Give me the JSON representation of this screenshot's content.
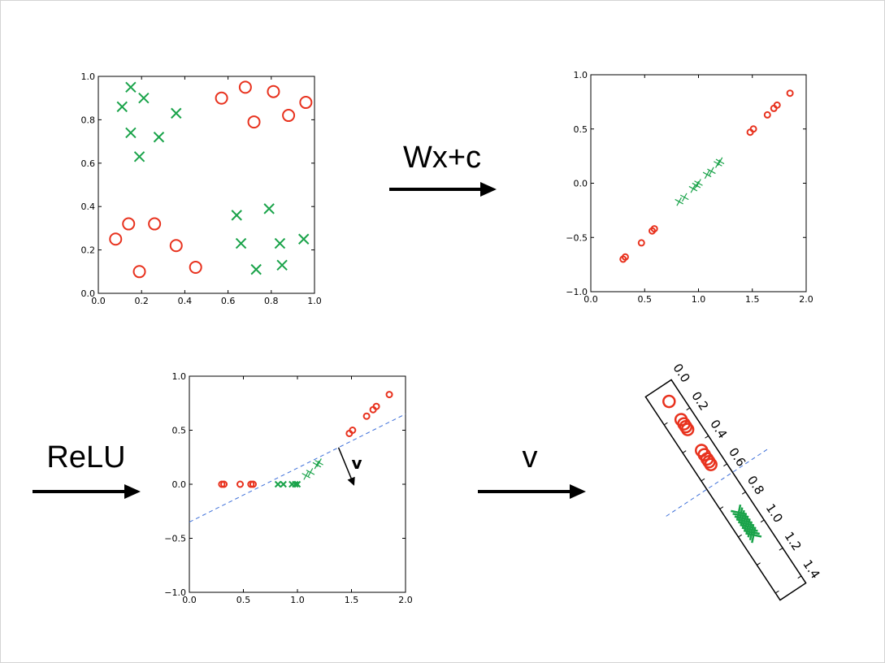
{
  "labels": {
    "wx_c": "Wx+c",
    "relu": "ReLU",
    "v_arrow": "v",
    "v_vector": "v"
  },
  "colors": {
    "circle": "#e8321e",
    "cross": "#1aa34a",
    "boundary": "#3d6fd9",
    "axis": "#000000"
  },
  "chart_data": [
    {
      "type": "scatter",
      "title": "",
      "xlim": [
        0,
        1
      ],
      "ylim": [
        0,
        1
      ],
      "xticks": [
        "0.0",
        "0.2",
        "0.4",
        "0.6",
        "0.8",
        "1.0"
      ],
      "yticks": [
        "0.0",
        "0.2",
        "0.4",
        "0.6",
        "0.8",
        "1.0"
      ],
      "series": [
        {
          "marker": "circle",
          "points": [
            [
              0.57,
              0.9
            ],
            [
              0.68,
              0.95
            ],
            [
              0.81,
              0.93
            ],
            [
              0.96,
              0.88
            ],
            [
              0.72,
              0.79
            ],
            [
              0.88,
              0.82
            ],
            [
              0.08,
              0.25
            ],
            [
              0.14,
              0.32
            ],
            [
              0.26,
              0.32
            ],
            [
              0.19,
              0.1
            ],
            [
              0.36,
              0.22
            ],
            [
              0.45,
              0.12
            ]
          ]
        },
        {
          "marker": "x",
          "points": [
            [
              0.15,
              0.95
            ],
            [
              0.21,
              0.9
            ],
            [
              0.11,
              0.86
            ],
            [
              0.36,
              0.83
            ],
            [
              0.15,
              0.74
            ],
            [
              0.28,
              0.72
            ],
            [
              0.19,
              0.63
            ],
            [
              0.64,
              0.36
            ],
            [
              0.79,
              0.39
            ],
            [
              0.66,
              0.23
            ],
            [
              0.84,
              0.23
            ],
            [
              0.95,
              0.25
            ],
            [
              0.73,
              0.11
            ],
            [
              0.85,
              0.13
            ]
          ]
        }
      ]
    },
    {
      "type": "scatter",
      "title": "",
      "xlim": [
        0,
        2
      ],
      "ylim": [
        -1,
        1
      ],
      "xticks": [
        "0.0",
        "0.5",
        "1.0",
        "1.5",
        "2.0"
      ],
      "yticks": [
        "−1.0",
        "−0.5",
        "0.0",
        "0.5",
        "1.0"
      ],
      "series": [
        {
          "marker": "circle",
          "points": [
            [
              0.3,
              -0.7
            ],
            [
              0.32,
              -0.68
            ],
            [
              0.47,
              -0.55
            ],
            [
              0.57,
              -0.44
            ],
            [
              0.59,
              -0.42
            ],
            [
              1.48,
              0.47
            ],
            [
              1.51,
              0.5
            ],
            [
              1.64,
              0.63
            ],
            [
              1.7,
              0.69
            ],
            [
              1.73,
              0.72
            ],
            [
              1.85,
              0.83
            ]
          ]
        },
        {
          "marker": "plus",
          "points": [
            [
              0.82,
              -0.17
            ],
            [
              0.87,
              -0.13
            ],
            [
              0.95,
              -0.05
            ],
            [
              0.98,
              -0.02
            ],
            [
              1.0,
              0.0
            ],
            [
              1.08,
              0.08
            ],
            [
              1.12,
              0.11
            ],
            [
              1.18,
              0.18
            ],
            [
              1.2,
              0.2
            ]
          ]
        }
      ]
    },
    {
      "type": "scatter",
      "title": "",
      "xlim": [
        0,
        2
      ],
      "ylim": [
        -1,
        1
      ],
      "xticks": [
        "0.0",
        "0.5",
        "1.0",
        "1.5",
        "2.0"
      ],
      "yticks": [
        "−1.0",
        "−0.5",
        "0.0",
        "0.5",
        "1.0"
      ],
      "boundary_line": [
        [
          0.0,
          -0.35
        ],
        [
          2.0,
          0.65
        ]
      ],
      "v_vector": [
        [
          1.38,
          0.34
        ],
        [
          1.52,
          0.0
        ]
      ],
      "series": [
        {
          "marker": "circle",
          "points": [
            [
              0.3,
              0.0
            ],
            [
              0.32,
              0.0
            ],
            [
              0.47,
              0.0
            ],
            [
              0.57,
              0.0
            ],
            [
              0.59,
              0.0
            ],
            [
              1.48,
              0.47
            ],
            [
              1.51,
              0.5
            ],
            [
              1.64,
              0.63
            ],
            [
              1.7,
              0.69
            ],
            [
              1.73,
              0.72
            ],
            [
              1.85,
              0.83
            ]
          ]
        },
        {
          "marker": "x",
          "points": [
            [
              0.82,
              0.0
            ],
            [
              0.87,
              0.0
            ],
            [
              0.95,
              0.0
            ],
            [
              0.98,
              0.0
            ],
            [
              1.0,
              0.0
            ]
          ]
        },
        {
          "marker": "plus",
          "points": [
            [
              1.08,
              0.08
            ],
            [
              1.12,
              0.11
            ],
            [
              1.18,
              0.18
            ],
            [
              1.2,
              0.2
            ]
          ]
        }
      ]
    },
    {
      "type": "scatter",
      "title": "",
      "orientation": "rotated",
      "xlim": [
        0,
        1.45
      ],
      "xticks": [
        "0.0",
        "0.2",
        "0.4",
        "0.6",
        "0.8",
        "1.0",
        "1.2",
        "1.4"
      ],
      "boundary_value": 0.66,
      "series": [
        {
          "marker": "circle",
          "values": [
            0.1,
            0.23,
            0.26,
            0.28,
            0.3,
            0.45,
            0.48,
            0.51,
            0.53,
            0.55
          ]
        },
        {
          "marker": "x",
          "values": [
            0.88,
            0.9,
            0.92,
            0.94,
            0.96,
            0.98,
            1.0,
            1.02,
            1.04
          ]
        }
      ]
    }
  ]
}
